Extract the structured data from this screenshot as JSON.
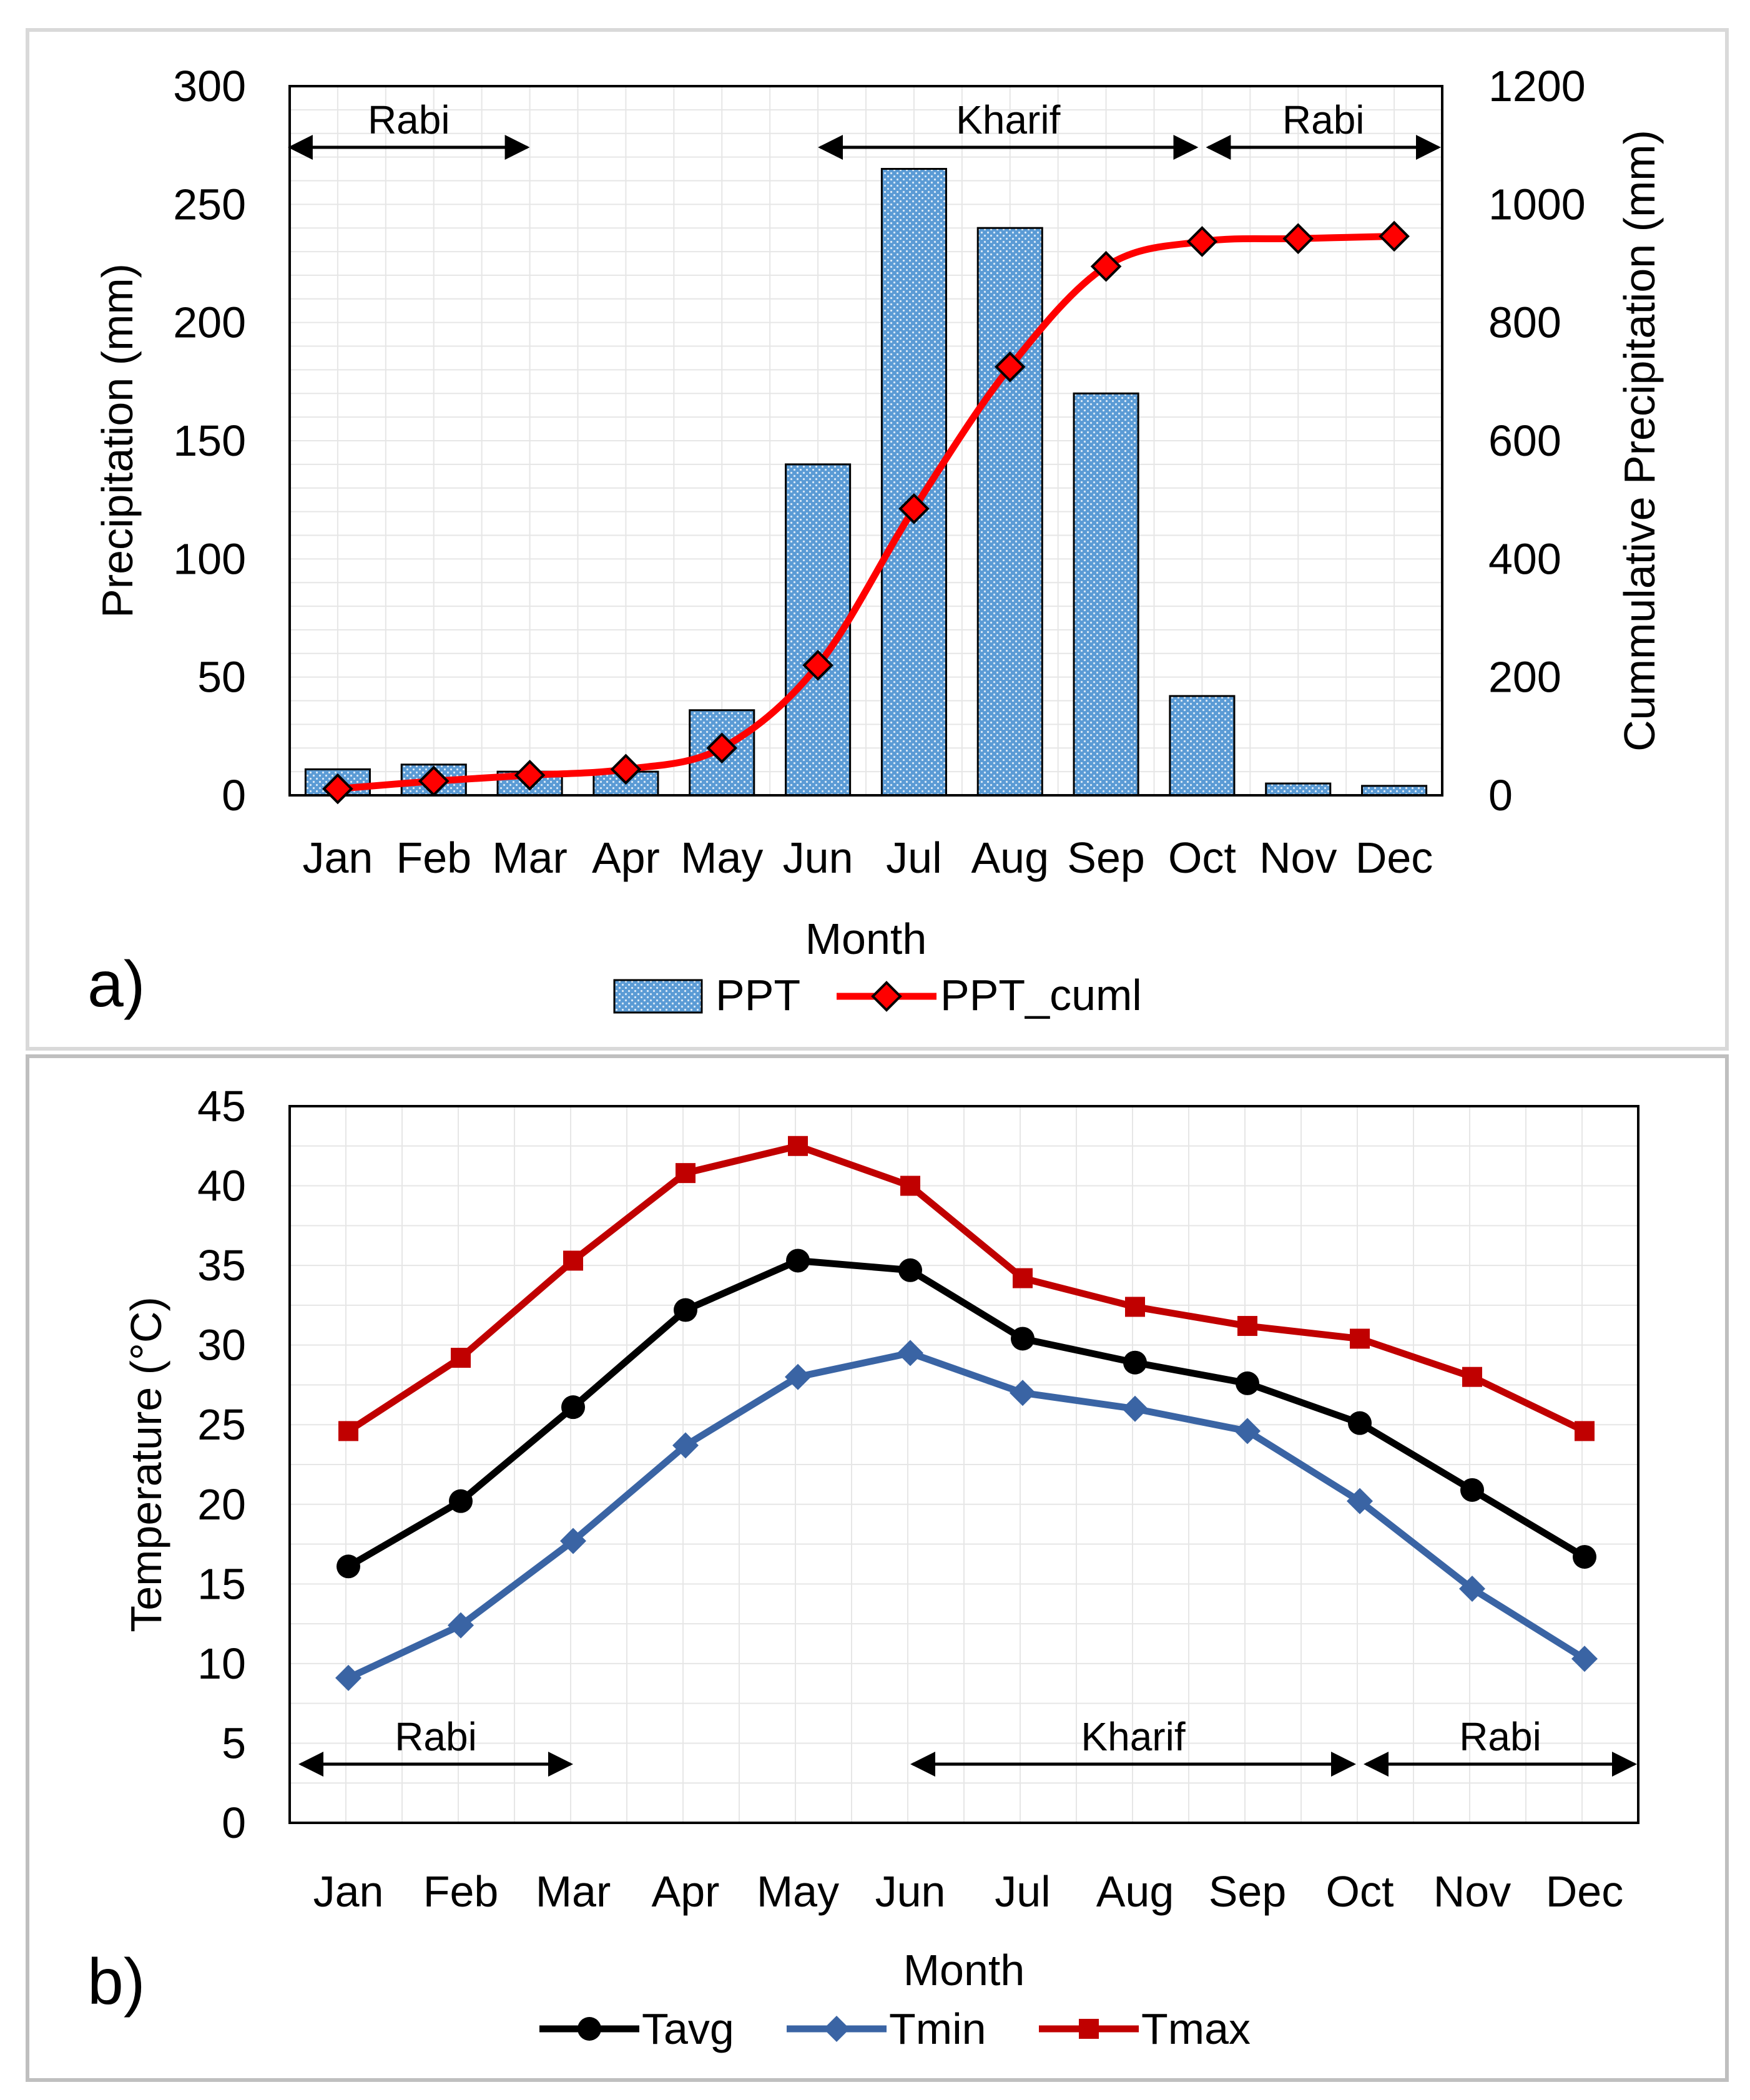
{
  "panel_labels": [
    "a)",
    "b)"
  ],
  "chart_data": [
    {
      "type": "bar+line",
      "panel": "a)",
      "title": "",
      "xlabel": "Month",
      "ylabel": "Precipitation (mm)",
      "y2label": "Cummulative Precipitation (mm)",
      "categories": [
        "Jan",
        "Feb",
        "Mar",
        "Apr",
        "May",
        "Jun",
        "Jul",
        "Aug",
        "Sep",
        "Oct",
        "Nov",
        "Dec"
      ],
      "ylim": [
        0,
        300
      ],
      "yticks": [
        0,
        50,
        100,
        150,
        200,
        250,
        300
      ],
      "y2lim": [
        0,
        1200
      ],
      "y2ticks": [
        0,
        200,
        400,
        600,
        800,
        1000,
        1200
      ],
      "grid": true,
      "series": [
        {
          "name": "PPT",
          "kind": "bar",
          "axis": "left",
          "color": "#5B9BD5",
          "values": [
            11,
            13,
            10,
            10,
            36,
            140,
            265,
            240,
            170,
            42,
            5,
            4
          ]
        },
        {
          "name": "PPT_cuml",
          "kind": "line",
          "axis": "right",
          "color": "#FF0000",
          "marker": "diamond",
          "values": [
            11,
            24,
            34,
            44,
            80,
            220,
            485,
            725,
            895,
            937,
            942,
            946
          ]
        }
      ],
      "season_annotations": [
        {
          "label": "Rabi",
          "from": "Jan",
          "to": "Mar"
        },
        {
          "label": "Kharif",
          "from": "Jun",
          "to": "Oct"
        },
        {
          "label": "Rabi",
          "from": "Oct",
          "to": "Dec"
        }
      ],
      "legend": {
        "position": "bottom",
        "entries": [
          "PPT",
          "PPT_cuml"
        ]
      }
    },
    {
      "type": "line",
      "panel": "b)",
      "title": "",
      "xlabel": "Month",
      "ylabel": "Temperature (°C)",
      "categories": [
        "Jan",
        "Feb",
        "Mar",
        "Apr",
        "May",
        "Jun",
        "Jul",
        "Aug",
        "Sep",
        "Oct",
        "Nov",
        "Dec"
      ],
      "ylim": [
        0,
        45
      ],
      "yticks": [
        0,
        5,
        10,
        15,
        20,
        25,
        30,
        35,
        40,
        45
      ],
      "grid": true,
      "series": [
        {
          "name": "Tavg",
          "color": "#000000",
          "marker": "circle",
          "values": [
            16.1,
            20.2,
            26.1,
            32.2,
            35.3,
            34.7,
            30.4,
            28.9,
            27.6,
            25.1,
            20.9,
            16.7
          ]
        },
        {
          "name": "Tmin",
          "color": "#3A64A4",
          "marker": "diamond",
          "values": [
            9.1,
            12.4,
            17.7,
            23.7,
            28.0,
            29.5,
            27.0,
            26.0,
            24.6,
            20.2,
            14.7,
            10.3
          ]
        },
        {
          "name": "Tmax",
          "color": "#C00000",
          "marker": "square",
          "values": [
            24.6,
            29.2,
            35.3,
            40.8,
            42.5,
            40.0,
            34.2,
            32.4,
            31.2,
            30.4,
            28.0,
            24.6
          ]
        }
      ],
      "season_annotations": [
        {
          "label": "Rabi",
          "from": "Jan",
          "to": "Mar"
        },
        {
          "label": "Kharif",
          "from": "Jun",
          "to": "Oct"
        },
        {
          "label": "Rabi",
          "from": "Oct",
          "to": "Dec"
        }
      ],
      "legend": {
        "position": "bottom",
        "entries": [
          "Tavg",
          "Tmin",
          "Tmax"
        ]
      }
    }
  ]
}
